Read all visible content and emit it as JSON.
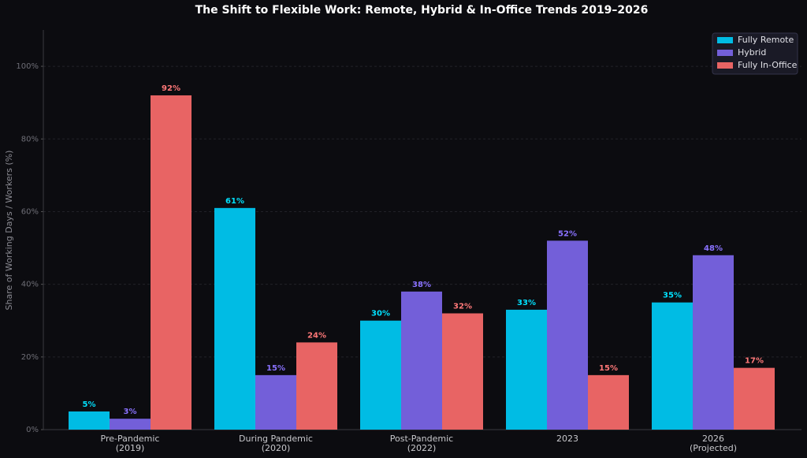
{
  "chart_data": {
    "type": "bar",
    "title": "The Shift to Flexible Work: Remote, Hybrid & In-Office Trends 2019–2026",
    "y_label": "Share of Working Days / Workers (%)",
    "categories": [
      "Pre-Pandemic\n(2019)",
      "During Pandemic\n(2020)",
      "Post-Pandemic\n(2022)",
      "2023",
      "2026\n(Projected)"
    ],
    "series": [
      {
        "name": "Fully Remote",
        "color": "#00bce4",
        "values": [
          5,
          61,
          30,
          33,
          35
        ],
        "value_labels": [
          "5%",
          "61%",
          "30%",
          "33%",
          "35%"
        ]
      },
      {
        "name": "Hybrid",
        "color": "#735fd9",
        "values": [
          3,
          15,
          38,
          52,
          48
        ],
        "value_labels": [
          "3%",
          "15%",
          "38%",
          "52%",
          "48%"
        ]
      },
      {
        "name": "Fully In-Office",
        "color": "#e86464",
        "values": [
          92,
          24,
          32,
          15,
          17
        ],
        "value_labels": [
          "92%",
          "24%",
          "32%",
          "15%",
          "17%"
        ]
      }
    ],
    "ylim": [
      0,
      110
    ],
    "yticks": [
      {
        "value": 0,
        "label": "0%"
      },
      {
        "value": 20,
        "label": "20%"
      },
      {
        "value": 40,
        "label": "40%"
      },
      {
        "value": 60,
        "label": "60%"
      },
      {
        "value": 80,
        "label": "80%"
      },
      {
        "value": 100,
        "label": "100%"
      }
    ],
    "grid": true,
    "legend": "upper right"
  }
}
